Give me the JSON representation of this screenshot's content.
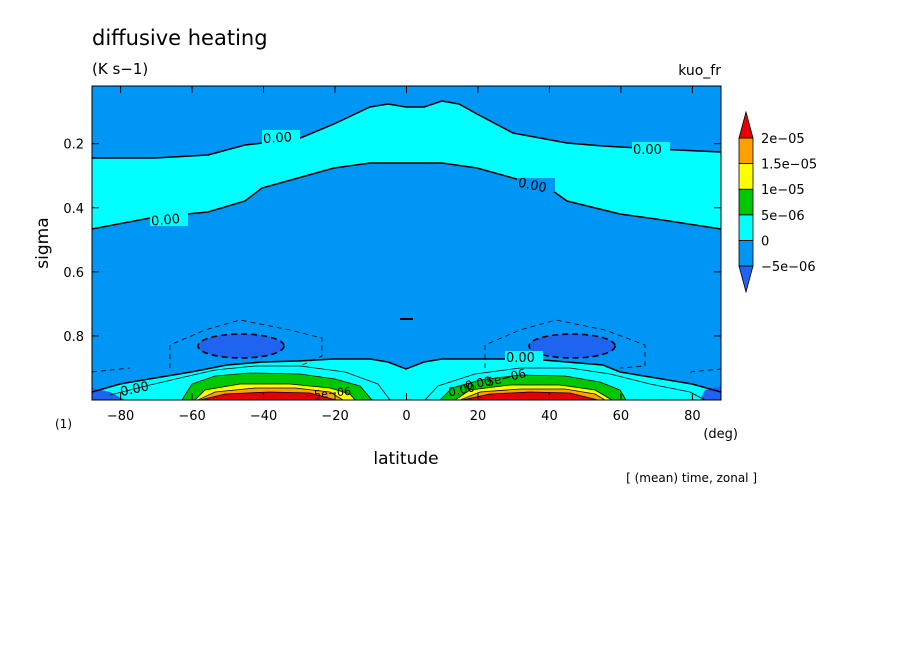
{
  "chart_data": {
    "type": "contour",
    "title": "diffusive heating",
    "units": "(K s−1)",
    "run_label": "kuo_fr",
    "xlabel": "latitude",
    "x_unit": "(deg)",
    "ylabel": "sigma",
    "panel_label": "(1)",
    "footnote": "[ (mean) time, zonal ]",
    "xlim": [
      -88,
      88
    ],
    "ylim": [
      1.0,
      0.02
    ],
    "x_ticks": [
      -80,
      -60,
      -40,
      -20,
      0,
      20,
      40,
      60,
      80
    ],
    "x_tick_labels": [
      "−80",
      "−60",
      "−40",
      "−20",
      "0",
      "20",
      "40",
      "60",
      "80"
    ],
    "y_ticks": [
      0.2,
      0.4,
      0.6,
      0.8
    ],
    "y_tick_labels": [
      "0.2",
      "0.4",
      "0.6",
      "0.8"
    ],
    "colorbar": {
      "levels": [
        -5e-06,
        0,
        5e-06,
        1e-05,
        1.5e-05,
        2e-05
      ],
      "labels": [
        "−5e−06",
        "0",
        "5e−06",
        "1e−05",
        "1.5e−05",
        "2e−05"
      ],
      "colors": [
        "#1e64f0",
        "#0096f5",
        "#00ffff",
        "#00c800",
        "#ffff00",
        "#ffa000",
        "#e60000"
      ]
    },
    "contour_labels": [
      "0.00",
      "0.00",
      "0.00",
      "0.00",
      "0.00",
      "0.00",
      "0.00",
      "0.00",
      "−5e−06",
      "5e−06"
    ],
    "zero_contours": [
      {
        "lat": [
          -88,
          -70,
          -55,
          -45,
          -30,
          -20,
          -10,
          -5,
          0,
          5,
          10,
          15,
          20,
          30,
          45,
          55,
          70,
          88
        ],
        "sigma": [
          0.25,
          0.25,
          0.24,
          0.21,
          0.19,
          0.14,
          0.08,
          0.07,
          0.08,
          0.08,
          0.06,
          0.07,
          0.1,
          0.16,
          0.19,
          0.21,
          0.22,
          0.23
        ]
      },
      {
        "lat": [
          -88,
          -70,
          -55,
          -48,
          -40,
          -30,
          -20,
          -10,
          -5,
          0,
          5,
          10,
          20,
          30,
          40,
          50,
          60,
          70,
          88
        ],
        "sigma": [
          0.46,
          0.44,
          0.42,
          0.4,
          0.35,
          0.31,
          0.28,
          0.26,
          0.26,
          0.26,
          0.26,
          0.26,
          0.28,
          0.31,
          0.35,
          0.4,
          0.42,
          0.44,
          0.46
        ]
      },
      {
        "lat": [
          -88,
          -80,
          -70,
          -60,
          -50,
          -40,
          -30,
          -20,
          -10,
          -5,
          0,
          5,
          10,
          20,
          30,
          40,
          50,
          60,
          70,
          80,
          88
        ],
        "sigma": [
          0.975,
          0.95,
          0.93,
          0.91,
          0.89,
          0.88,
          0.875,
          0.87,
          0.87,
          0.885,
          0.9,
          0.885,
          0.87,
          0.87,
          0.87,
          0.88,
          0.89,
          0.91,
          0.93,
          0.95,
          0.975
        ]
      }
    ],
    "negative_regions": [
      {
        "center_lat": -40,
        "center_sigma": 0.835,
        "value_approx": -5e-06
      },
      {
        "center_lat": 40,
        "center_sigma": 0.835,
        "value_approx": -5e-06
      }
    ],
    "heating_maxima": [
      {
        "center_lat": -35,
        "sigma_range": [
          0.93,
          1.0
        ],
        "value_max": 2e-05
      },
      {
        "center_lat": 35,
        "sigma_range": [
          0.93,
          1.0
        ],
        "value_max": 2e-05
      }
    ]
  }
}
